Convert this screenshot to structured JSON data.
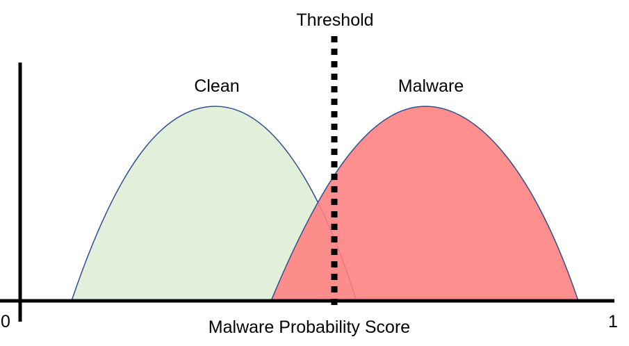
{
  "title": "",
  "threshold_label": "Threshold",
  "clean_label": "Clean",
  "malware_label": "Malware",
  "x_axis_label": "Malware Probability Score",
  "x_min_label": "0",
  "x_max_label": "1",
  "colors": {
    "clean_fill": "#E2EFDA",
    "malware_fill": "#FF7F7F",
    "curve_stroke": "#2F4F8F",
    "axis": "#000000",
    "threshold_line": "#000000"
  }
}
